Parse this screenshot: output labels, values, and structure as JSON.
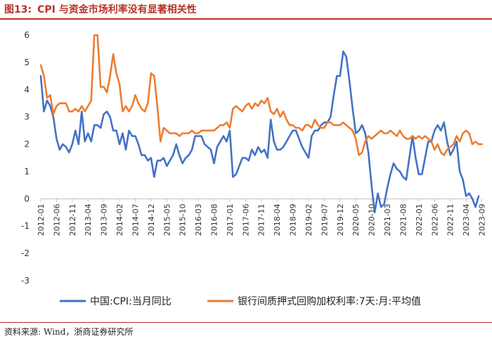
{
  "title": {
    "label": "图13:",
    "text": "CPI 与资金市场利率没有显著相关性"
  },
  "source": {
    "label": "资料来源:",
    "text": "Wind，浙商证券研究所"
  },
  "chart_data": {
    "type": "line",
    "ylim": [
      -3,
      6
    ],
    "yticks": [
      -3,
      -2,
      -1,
      0,
      1,
      2,
      3,
      4,
      5,
      6
    ],
    "x_start": "2012-01",
    "x_end": "2023-09",
    "xtick_labels": [
      "2012-01",
      "2012-06",
      "2012-11",
      "2013-04",
      "2013-09",
      "2014-02",
      "2014-07",
      "2014-12",
      "2015-05",
      "2015-10",
      "2016-03",
      "2016-08",
      "2017-01",
      "2017-06",
      "2017-11",
      "2018-04",
      "2018-09",
      "2019-02",
      "2019-07",
      "2019-12",
      "2020-05",
      "2020-10",
      "2021-03",
      "2021-08",
      "2022-01",
      "2022-06",
      "2022-11",
      "2023-04",
      "2023-09"
    ],
    "grid": false,
    "legend_position": "bottom",
    "colors": {
      "cpi": "#4472c4",
      "rate": "#ed7d31",
      "title": "#b83224"
    },
    "series": [
      {
        "name": "中国:CPI:当月同比",
        "values": [
          4.5,
          3.2,
          3.6,
          3.4,
          3.0,
          2.2,
          1.8,
          2.0,
          1.9,
          1.7,
          2.0,
          2.5,
          2.0,
          3.2,
          2.1,
          2.4,
          2.1,
          2.7,
          2.7,
          2.6,
          3.1,
          3.2,
          3.0,
          2.5,
          2.5,
          2.0,
          2.4,
          1.8,
          2.5,
          2.3,
          2.3,
          2.0,
          1.6,
          1.6,
          1.4,
          1.5,
          0.8,
          1.4,
          1.4,
          1.5,
          1.2,
          1.4,
          1.6,
          2.0,
          1.6,
          1.3,
          1.5,
          1.6,
          1.8,
          2.3,
          2.3,
          2.3,
          2.0,
          1.9,
          1.8,
          1.3,
          1.9,
          2.1,
          2.3,
          2.1,
          2.5,
          0.8,
          0.9,
          1.2,
          1.5,
          1.5,
          1.4,
          1.8,
          1.6,
          1.9,
          1.7,
          1.8,
          1.5,
          2.9,
          2.1,
          1.8,
          1.8,
          1.9,
          2.1,
          2.3,
          2.5,
          2.5,
          2.2,
          1.9,
          1.7,
          1.5,
          2.3,
          2.5,
          2.5,
          2.7,
          2.8,
          2.8,
          3.0,
          3.8,
          4.5,
          4.5,
          5.4,
          5.2,
          4.3,
          3.3,
          2.4,
          2.5,
          2.7,
          2.4,
          1.7,
          0.5,
          -0.5,
          0.2,
          -0.3,
          -0.2,
          0.4,
          0.9,
          1.3,
          1.1,
          1.0,
          0.8,
          0.7,
          1.5,
          2.3,
          1.5,
          0.9,
          0.9,
          1.5,
          2.1,
          2.1,
          2.5,
          2.7,
          2.5,
          2.8,
          2.1,
          1.6,
          1.8,
          2.1,
          1.0,
          0.7,
          0.1,
          0.2,
          0.0,
          -0.3,
          0.1
        ]
      },
      {
        "name": "银行间质押式回购加权利率:7天:月:平均值",
        "values": [
          4.9,
          4.5,
          3.7,
          3.8,
          3.1,
          3.4,
          3.5,
          3.5,
          3.5,
          3.2,
          3.2,
          3.3,
          3.2,
          3.4,
          3.2,
          3.4,
          3.6,
          6.0,
          6.0,
          4.1,
          4.1,
          3.9,
          4.5,
          5.3,
          4.6,
          4.2,
          3.2,
          3.4,
          3.2,
          3.4,
          3.8,
          3.5,
          3.3,
          3.2,
          3.5,
          4.6,
          4.5,
          3.4,
          2.1,
          2.6,
          2.5,
          2.4,
          2.4,
          2.4,
          2.3,
          2.4,
          2.4,
          2.4,
          2.5,
          2.4,
          2.4,
          2.5,
          2.5,
          2.5,
          2.5,
          2.5,
          2.6,
          2.7,
          2.7,
          2.8,
          2.6,
          3.3,
          3.4,
          3.3,
          3.2,
          3.4,
          3.5,
          3.3,
          3.5,
          3.4,
          3.6,
          3.5,
          3.7,
          3.2,
          3.1,
          3.3,
          3.0,
          3.2,
          2.9,
          2.7,
          2.7,
          2.6,
          2.6,
          2.5,
          2.7,
          2.7,
          2.6,
          2.9,
          2.7,
          2.6,
          2.6,
          2.8,
          2.8,
          2.7,
          2.7,
          2.7,
          2.8,
          2.7,
          2.6,
          2.5,
          2.2,
          1.6,
          1.7,
          2.1,
          2.3,
          2.2,
          2.3,
          2.4,
          2.5,
          2.4,
          2.4,
          2.5,
          2.4,
          2.3,
          2.5,
          2.3,
          2.2,
          2.2,
          2.3,
          2.2,
          2.3,
          2.2,
          2.3,
          2.2,
          2.1,
          1.8,
          2.0,
          1.7,
          1.6,
          1.8,
          1.9,
          2.0,
          2.3,
          2.1,
          2.4,
          2.5,
          2.4,
          2.0,
          2.1,
          2.0,
          2.0
        ]
      }
    ]
  }
}
